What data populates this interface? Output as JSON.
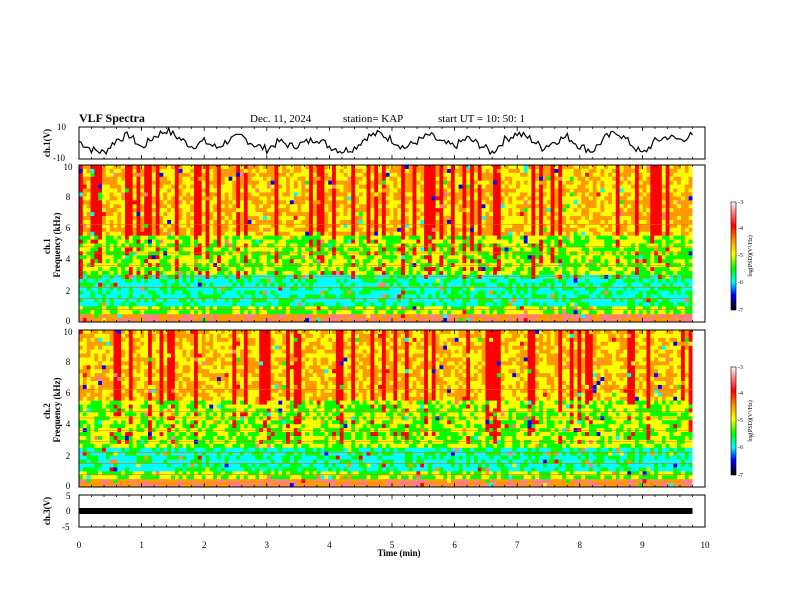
{
  "header": {
    "title": "VLF Spectra",
    "date": "Dec. 11, 2024",
    "station": "station= KAP",
    "start_ut": "start  UT =   10: 50: 1"
  },
  "chart_data": [
    {
      "id": "ch1_waveform",
      "type": "line",
      "ylabel": "ch.1(V)",
      "ylim": [
        -10,
        10
      ],
      "ytick_labels": [
        "10",
        "-10"
      ],
      "x": [
        0,
        0.2,
        0.4,
        0.6,
        0.8,
        1.0,
        1.2,
        1.4,
        1.6,
        1.8,
        2.0,
        2.2,
        2.4,
        2.6,
        2.8,
        3.0,
        3.2,
        3.4,
        3.6,
        3.8,
        4.0,
        4.2,
        4.4,
        4.6,
        4.8,
        5.0,
        5.2,
        5.4,
        5.6,
        5.8,
        6.0,
        6.2,
        6.4,
        6.6,
        6.8,
        7.0,
        7.2,
        7.4,
        7.6,
        7.8,
        8.0,
        8.2,
        8.4,
        8.6,
        8.8,
        9.0,
        9.2,
        9.4,
        9.6,
        9.8
      ],
      "values": [
        1,
        -4,
        -6,
        2,
        5,
        -3,
        4,
        8,
        3,
        -2,
        1,
        -3,
        2,
        4,
        -1,
        -4,
        1,
        -2,
        0,
        3,
        -2,
        -5,
        -3,
        4,
        6,
        2,
        -3,
        1,
        5,
        0,
        -2,
        3,
        -1,
        -6,
        2,
        6,
        3,
        -3,
        1,
        4,
        -2,
        -5,
        3,
        7,
        0,
        -7,
        1,
        4,
        2,
        5
      ]
    },
    {
      "id": "ch1_spectrogram",
      "type": "heatmap",
      "ylabel": "ch.1\nFrequency (kHz)",
      "ylim": [
        0,
        10
      ],
      "ytick_labels": [
        "0",
        "2",
        "4",
        "6",
        "8",
        "10"
      ],
      "colorbar": {
        "label": "log(PSD)(V²/Hz)",
        "range": [
          -7,
          -3
        ],
        "tick_labels": [
          "-3",
          "-4",
          "-5",
          "-6",
          "-7"
        ]
      }
    },
    {
      "id": "ch2_spectrogram",
      "type": "heatmap",
      "ylabel": "ch.2\nFrequency (kHz)",
      "ylim": [
        0,
        10
      ],
      "ytick_labels": [
        "0",
        "2",
        "4",
        "6",
        "8",
        "10"
      ],
      "colorbar": {
        "label": "log(PSD)(V²/Hz)",
        "range": [
          -7,
          -3
        ],
        "tick_labels": [
          "-3",
          "-4",
          "-5",
          "-6",
          "-7"
        ]
      }
    },
    {
      "id": "ch3_signal",
      "type": "line",
      "ylabel": "ch.3(V)",
      "ylim": [
        -5,
        5
      ],
      "ytick_labels": [
        "5",
        "0",
        "-5"
      ],
      "x": [
        0,
        9.8
      ],
      "values": [
        -0.5,
        -0.5
      ]
    }
  ],
  "xaxis": {
    "label": "Time  (min)",
    "range": [
      0,
      10
    ],
    "tick_labels": [
      "0",
      "1",
      "2",
      "3",
      "4",
      "5",
      "6",
      "7",
      "8",
      "9",
      "10"
    ]
  }
}
